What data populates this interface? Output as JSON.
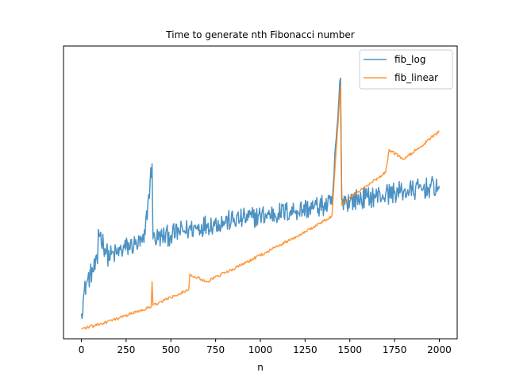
{
  "chart_data": {
    "type": "line",
    "title": "Time to generate nth Fibonacci number",
    "xlabel": "n",
    "ylabel": "",
    "xlim": [
      -100,
      2100
    ],
    "ylim": [
      -1.0,
      40.0
    ],
    "xticks": [
      0,
      250,
      500,
      750,
      1000,
      1250,
      1500,
      1750,
      2000
    ],
    "xtick_labels": [
      "0",
      "250",
      "500",
      "750",
      "1000",
      "1250",
      "1500",
      "1750",
      "2000"
    ],
    "yticks_visible": false,
    "grid": false,
    "legend": {
      "position": "top-right",
      "entries": [
        "fib_log",
        "fib_linear"
      ]
    },
    "series": [
      {
        "name": "fib_log",
        "color": "#1f77b4",
        "opacity": 0.8,
        "profile": "logarithmic growth with heavy noise",
        "points": [
          [
            0,
            2.5
          ],
          [
            10,
            4.5
          ],
          [
            25,
            6.5
          ],
          [
            50,
            8.0
          ],
          [
            90,
            9.5
          ],
          [
            95,
            14.3
          ],
          [
            150,
            10.5
          ],
          [
            200,
            11.0
          ],
          [
            250,
            11.8
          ],
          [
            300,
            12.2
          ],
          [
            350,
            12.5
          ],
          [
            395,
            23.5
          ],
          [
            400,
            13.0
          ],
          [
            450,
            13.3
          ],
          [
            500,
            13.5
          ],
          [
            550,
            14.0
          ],
          [
            600,
            14.3
          ],
          [
            650,
            14.6
          ],
          [
            700,
            15.0
          ],
          [
            750,
            15.2
          ],
          [
            800,
            15.4
          ],
          [
            850,
            15.6
          ],
          [
            900,
            15.8
          ],
          [
            950,
            16.0
          ],
          [
            1000,
            16.2
          ],
          [
            1050,
            16.4
          ],
          [
            1100,
            16.6
          ],
          [
            1150,
            16.8
          ],
          [
            1200,
            17.0
          ],
          [
            1250,
            17.2
          ],
          [
            1300,
            17.4
          ],
          [
            1350,
            17.6
          ],
          [
            1400,
            17.8
          ],
          [
            1448,
            35.5
          ],
          [
            1455,
            18.5
          ],
          [
            1500,
            18.3
          ],
          [
            1550,
            18.6
          ],
          [
            1600,
            18.8
          ],
          [
            1650,
            19.0
          ],
          [
            1700,
            19.2
          ],
          [
            1750,
            19.5
          ],
          [
            1800,
            19.6
          ],
          [
            1850,
            19.8
          ],
          [
            1900,
            20.0
          ],
          [
            1950,
            20.2
          ],
          [
            2000,
            20.4
          ]
        ],
        "noise_amplitude": 3.0
      },
      {
        "name": "fib_linear",
        "color": "#ff7f0e",
        "opacity": 0.8,
        "profile": "near-linear growth with occasional spikes",
        "points": [
          [
            0,
            0.4
          ],
          [
            100,
            1.0
          ],
          [
            200,
            1.8
          ],
          [
            300,
            2.7
          ],
          [
            390,
            3.5
          ],
          [
            395,
            7.0
          ],
          [
            400,
            3.7
          ],
          [
            500,
            4.8
          ],
          [
            600,
            5.9
          ],
          [
            605,
            8.0
          ],
          [
            700,
            7.0
          ],
          [
            800,
            8.2
          ],
          [
            900,
            9.4
          ],
          [
            1000,
            10.7
          ],
          [
            1100,
            12.0
          ],
          [
            1200,
            13.3
          ],
          [
            1300,
            14.7
          ],
          [
            1400,
            16.2
          ],
          [
            1448,
            34.5
          ],
          [
            1455,
            17.7
          ],
          [
            1500,
            18.8
          ],
          [
            1600,
            20.5
          ],
          [
            1700,
            22.3
          ],
          [
            1720,
            25.5
          ],
          [
            1800,
            24.1
          ],
          [
            1900,
            26.0
          ],
          [
            1970,
            27.5
          ],
          [
            2000,
            28.0
          ]
        ],
        "noise_amplitude": 0.4
      }
    ]
  }
}
